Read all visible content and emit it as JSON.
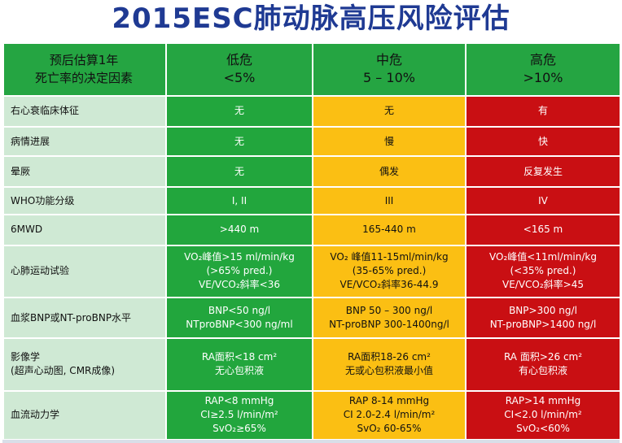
{
  "title": "2015ESC肺动脉高压风险评估",
  "header": {
    "label_line1": "预后估算1年",
    "label_line2": "死亡率的决定因素",
    "low": {
      "name": "低危",
      "rate": "<5%"
    },
    "mid": {
      "name": "中危",
      "rate": "5 – 10%"
    },
    "high": {
      "name": "高危",
      "rate": ">10%"
    }
  },
  "rows": [
    {
      "label": "右心衰临床体征",
      "low": "无",
      "mid": "无",
      "high": "有"
    },
    {
      "label": "病情进展",
      "low": "无",
      "mid": "慢",
      "high": "快"
    },
    {
      "label": "晕厥",
      "low": "无",
      "mid": "偶发",
      "high": "反复发生"
    },
    {
      "label": "WHO功能分级",
      "low": "I, II",
      "mid": "III",
      "high": "IV"
    },
    {
      "label": "6MWD",
      "low": ">440 m",
      "mid": "165-440 m",
      "high": "<165 m"
    },
    {
      "label": "心肺运动试验",
      "low": [
        "VO₂峰值>15 ml/min/kg",
        "(>65% pred.)",
        "VE/VCO₂斜率<36"
      ],
      "mid": [
        "VO₂ 峰值11-15ml/min/kg",
        "(35-65% pred.)",
        "VE/VCO₂斜率36-44.9"
      ],
      "high": [
        "VO₂峰值<11ml/min/kg",
        "(<35% pred.)",
        "VE/VCO₂斜率>45"
      ]
    },
    {
      "label": "血浆BNP或NT-proBNP水平",
      "low": [
        "BNP<50 ng/l",
        "NTproBNP<300 ng/ml"
      ],
      "mid": [
        "BNP 50 – 300 ng/l",
        "NT-proBNP 300-1400ng/l"
      ],
      "high": [
        "BNP>300 ng/l",
        "NT-proBNP>1400 ng/l"
      ]
    },
    {
      "label": [
        "影像学",
        "(超声心动图, CMR成像)"
      ],
      "low": [
        "RA面积<18 cm²",
        "无心包积液"
      ],
      "mid": [
        "RA面积18-26 cm²",
        "无或心包积液最小值"
      ],
      "high": [
        "RA 面积>26 cm²",
        "有心包积液"
      ]
    },
    {
      "label": "血流动力学",
      "low": [
        "RAP<8 mmHg",
        "CI≥2.5 l/min/m²",
        "SvO₂≥65%"
      ],
      "mid": [
        "RAP 8-14 mmHg",
        "CI 2.0-2.4 l/min/m²",
        "SvO₂ 60-65%"
      ],
      "high": [
        "RAP>14 mmHg",
        "CI<2.0 l/min/m²",
        "SvO₂<60%"
      ]
    }
  ]
}
